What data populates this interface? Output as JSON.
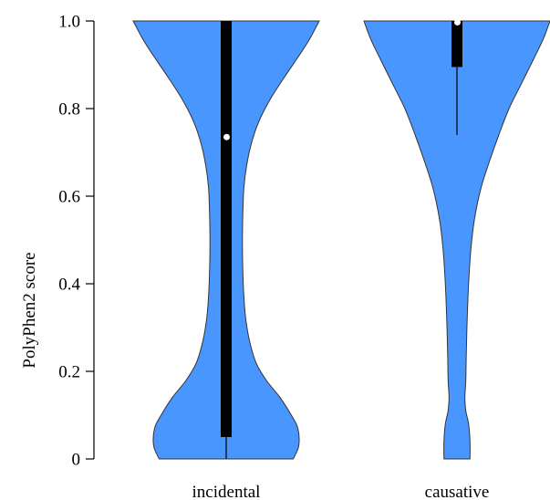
{
  "colors": {
    "violin_fill": "#4a96ff",
    "box": "#000000",
    "median": "#ffffff"
  },
  "chart_data": {
    "type": "violin",
    "title": "",
    "xlabel": "",
    "ylabel": "PolyPhen2 score",
    "ylim": [
      0,
      1
    ],
    "yticks": [
      0,
      0.2,
      0.4,
      0.6,
      0.8,
      1.0
    ],
    "ytick_labels": [
      "0",
      "0.2",
      "0.4",
      "0.6",
      "0.8",
      "1.0"
    ],
    "grid": false,
    "categories": [
      "incidental",
      "causative"
    ],
    "violins": [
      {
        "category": "incidental",
        "median": 0.735,
        "q1": 0.05,
        "q3": 1.0,
        "whisker_low": 0.0,
        "whisker_high": 1.0,
        "density": [
          [
            0.0,
            0.72
          ],
          [
            0.03,
            0.78
          ],
          [
            0.07,
            0.77
          ],
          [
            0.1,
            0.7
          ],
          [
            0.14,
            0.58
          ],
          [
            0.18,
            0.43
          ],
          [
            0.22,
            0.32
          ],
          [
            0.27,
            0.25
          ],
          [
            0.32,
            0.21
          ],
          [
            0.37,
            0.19
          ],
          [
            0.42,
            0.18
          ],
          [
            0.47,
            0.175
          ],
          [
            0.52,
            0.175
          ],
          [
            0.57,
            0.18
          ],
          [
            0.62,
            0.19
          ],
          [
            0.67,
            0.22
          ],
          [
            0.72,
            0.27
          ],
          [
            0.77,
            0.35
          ],
          [
            0.82,
            0.47
          ],
          [
            0.87,
            0.62
          ],
          [
            0.92,
            0.78
          ],
          [
            0.96,
            0.9
          ],
          [
            1.0,
            1.0
          ]
        ]
      },
      {
        "category": "causative",
        "median": 0.997,
        "q1": 0.895,
        "q3": 1.0,
        "whisker_low": 0.74,
        "whisker_high": 1.0,
        "density": [
          [
            0.0,
            0.14
          ],
          [
            0.04,
            0.14
          ],
          [
            0.08,
            0.125
          ],
          [
            0.11,
            0.095
          ],
          [
            0.14,
            0.085
          ],
          [
            0.18,
            0.095
          ],
          [
            0.24,
            0.1
          ],
          [
            0.32,
            0.11
          ],
          [
            0.4,
            0.125
          ],
          [
            0.48,
            0.15
          ],
          [
            0.55,
            0.19
          ],
          [
            0.62,
            0.26
          ],
          [
            0.68,
            0.35
          ],
          [
            0.74,
            0.45
          ],
          [
            0.8,
            0.56
          ],
          [
            0.86,
            0.7
          ],
          [
            0.92,
            0.84
          ],
          [
            0.96,
            0.93
          ],
          [
            1.0,
            1.0
          ]
        ]
      }
    ]
  }
}
